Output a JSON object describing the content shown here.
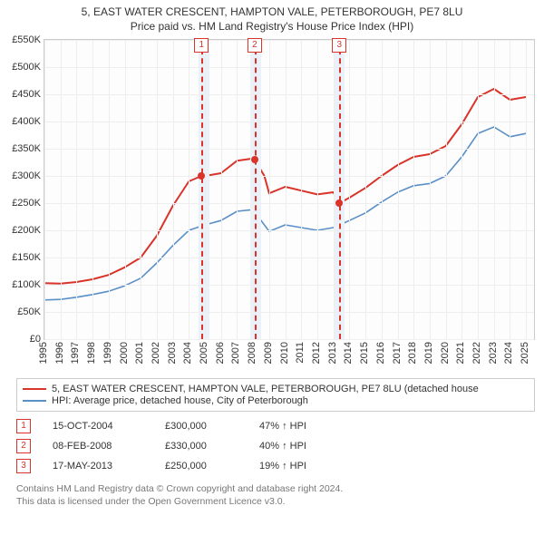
{
  "title_line1": "5, EAST WATER CRESCENT, HAMPTON VALE, PETERBOROUGH, PE7 8LU",
  "title_line2": "Price paid vs. HM Land Registry's House Price Index (HPI)",
  "chart": {
    "type": "line",
    "x_min": 1995,
    "x_max": 2025.5,
    "y_min": 0,
    "y_max": 550000,
    "y_ticks": [
      0,
      50000,
      100000,
      150000,
      200000,
      250000,
      300000,
      350000,
      400000,
      450000,
      500000,
      550000
    ],
    "y_tick_labels": [
      "£0",
      "£50K",
      "£100K",
      "£150K",
      "£200K",
      "£250K",
      "£300K",
      "£350K",
      "£400K",
      "£450K",
      "£500K",
      "£550K"
    ],
    "x_ticks": [
      1995,
      1996,
      1997,
      1998,
      1999,
      2000,
      2001,
      2002,
      2003,
      2004,
      2005,
      2006,
      2007,
      2008,
      2009,
      2010,
      2011,
      2012,
      2013,
      2014,
      2015,
      2016,
      2017,
      2018,
      2019,
      2020,
      2021,
      2022,
      2023,
      2024,
      2025
    ],
    "grid_color": "#eeeeee",
    "vbands": [
      [
        2004.6,
        2005.3
      ],
      [
        2007.8,
        2008.5
      ],
      [
        2013.1,
        2013.7
      ]
    ],
    "band_color": "#eaf1f8",
    "series_property": {
      "color": "#d9332a",
      "width": 2,
      "points": [
        [
          1995,
          103000
        ],
        [
          1996,
          102000
        ],
        [
          1997,
          105000
        ],
        [
          1998,
          110000
        ],
        [
          1999,
          118000
        ],
        [
          2000,
          132000
        ],
        [
          2001,
          150000
        ],
        [
          2002,
          190000
        ],
        [
          2003,
          245000
        ],
        [
          2004,
          290000
        ],
        [
          2004.79,
          300000
        ],
        [
          2005,
          300000
        ],
        [
          2006,
          305000
        ],
        [
          2007,
          328000
        ],
        [
          2008,
          332000
        ],
        [
          2008.1,
          330000
        ],
        [
          2008.7,
          300000
        ],
        [
          2009,
          268000
        ],
        [
          2010,
          280000
        ],
        [
          2011,
          273000
        ],
        [
          2012,
          266000
        ],
        [
          2013,
          270000
        ],
        [
          2013.37,
          250000
        ],
        [
          2014,
          260000
        ],
        [
          2015,
          278000
        ],
        [
          2016,
          300000
        ],
        [
          2017,
          320000
        ],
        [
          2018,
          335000
        ],
        [
          2019,
          340000
        ],
        [
          2020,
          355000
        ],
        [
          2021,
          395000
        ],
        [
          2022,
          445000
        ],
        [
          2023,
          460000
        ],
        [
          2024,
          440000
        ],
        [
          2025,
          445000
        ]
      ]
    },
    "series_hpi": {
      "color": "#5a8fc7",
      "width": 1.6,
      "points": [
        [
          1995,
          72000
        ],
        [
          1996,
          73000
        ],
        [
          1997,
          77000
        ],
        [
          1998,
          82000
        ],
        [
          1999,
          88000
        ],
        [
          2000,
          98000
        ],
        [
          2001,
          112000
        ],
        [
          2002,
          140000
        ],
        [
          2003,
          172000
        ],
        [
          2004,
          200000
        ],
        [
          2005,
          210000
        ],
        [
          2006,
          218000
        ],
        [
          2007,
          235000
        ],
        [
          2008,
          238000
        ],
        [
          2009,
          198000
        ],
        [
          2010,
          210000
        ],
        [
          2011,
          205000
        ],
        [
          2012,
          200000
        ],
        [
          2013,
          205000
        ],
        [
          2014,
          218000
        ],
        [
          2015,
          232000
        ],
        [
          2016,
          252000
        ],
        [
          2017,
          270000
        ],
        [
          2018,
          282000
        ],
        [
          2019,
          286000
        ],
        [
          2020,
          300000
        ],
        [
          2021,
          335000
        ],
        [
          2022,
          378000
        ],
        [
          2023,
          390000
        ],
        [
          2024,
          372000
        ],
        [
          2025,
          378000
        ]
      ]
    },
    "markers": [
      {
        "n": "1",
        "x": 2004.79,
        "y": 300000
      },
      {
        "n": "2",
        "x": 2008.1,
        "y": 330000
      },
      {
        "n": "3",
        "x": 2013.37,
        "y": 250000
      }
    ]
  },
  "legend": {
    "items": [
      {
        "color": "#d9332a",
        "label": "5, EAST WATER CRESCENT, HAMPTON VALE, PETERBOROUGH, PE7 8LU (detached house"
      },
      {
        "color": "#5a8fc7",
        "label": "HPI: Average price, detached house, City of Peterborough"
      }
    ]
  },
  "events": [
    {
      "n": "1",
      "date": "15-OCT-2004",
      "price": "£300,000",
      "pct": "47% ↑ HPI"
    },
    {
      "n": "2",
      "date": "08-FEB-2008",
      "price": "£330,000",
      "pct": "40% ↑ HPI"
    },
    {
      "n": "3",
      "date": "17-MAY-2013",
      "price": "£250,000",
      "pct": "19% ↑ HPI"
    }
  ],
  "attribution_line1": "Contains HM Land Registry data © Crown copyright and database right 2024.",
  "attribution_line2": "This data is licensed under the Open Government Licence v3.0."
}
